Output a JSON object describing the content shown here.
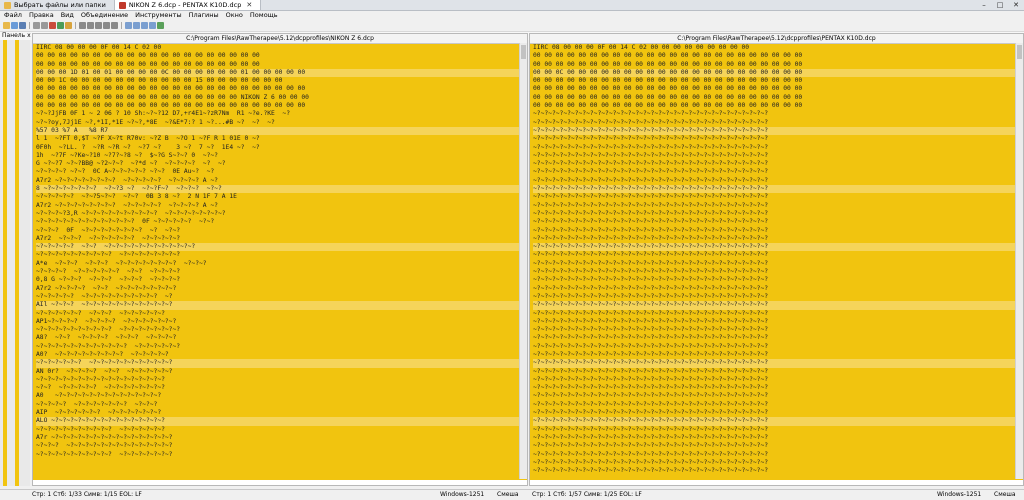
{
  "tabs": [
    {
      "label": "Выбрать файлы или папки",
      "icon": "folder-icon"
    },
    {
      "label": "NIKON Z 6.dcp - PENTAX K10D.dcp",
      "icon": "dcp-file-icon"
    }
  ],
  "menu": [
    "Файл",
    "Правка",
    "Вид",
    "Объединение",
    "Инструменты",
    "Плагины",
    "Окно",
    "Помощь"
  ],
  "panel_label": "Панель x",
  "panes": [
    {
      "title": "C:\\Program Files\\RawTherapee\\5.12\\dcpprofiles\\NIKON Z 6.dcp",
      "lines": [
        "IIRC 08 00 00 00 0F 00 14 C 02 00",
        "00 00 00 00 00 00 00 00 00 00 00 00 00 00 00 00 00 00 00 00",
        "00 00 00 00 00 00 00 00 00 00 00 00 00 00 00 00 00 00 00 00",
        "00 00 00 1D 01 00 01 00 00 00 00 0C 00 00 00 00 00 00 01 00 00 00 00 00",
        "00 00 1C 00 00 00 00 00 00 00 00 00 00 00 15 00 00 00 00 00 00 00",
        "00 00 00 00 00 00 00 00 00 00 00 00 00 00 00 00 00 00 00 00 00 00 00 00",
        "00 00 00 00 00 00 00 00 00 00 00 00 00 00 00 00 00 00 NIKON Z 6 00 00 00",
        "00 00 00 00 00 00 00 00 00 00 00 00 00 00 00 00 00 00 00 00 00 00 00 00",
        "~?~?JjFB 0F 1 ~ 2 06 ? 10 Sh:~?~?12 D7,+r4E1~?zR7Nm  R1 ~?e.?KE  ~?",
        "~?~?oy,7Jj1E ~?,*1I,*1E ~?~?,*8E  ~?&E*7:? 1 ~?...#B ~?  ~?  ~?",
        "%57 03 %7 A   %8 R7",
        "l 1  ~?FT 0,$T ~?F X~?t R70v: ~?Z B  ~?O 1 ~?F R 1 01E 0 ~?",
        "0F0h  ~?LL. ?  ~?R ~?R ~?  ~?7 ~?    3 ~?  7 ~?  1E4 ~?  ~?",
        "1h  ~?7F ~?Ke~?10 ~?7?~?8 ~?  $~?G S~?~? 0  ~?~?",
        "G ~?~?7 ~?~?BB@ ~?2~?~?  ~?*d ~?  ~?~?~?~?  ~?  ~?",
        "~?~?~?~? ~?~?  0C A~?~?~?~?~? ~?~?  0E Au~?  ~?",
        "A7r2 ~?~?~?~?~?~?~?~?  ~?~?~?~?~?  ~?~?~?~? A ~?",
        "8 ~?~?~?~?~?~?~?  ~?~?3 ~?  ~?~?F~?  ~?~?~?  ~?~?",
        "~?~?~?~?~?  ~?~?5~?~?  ~?~?  0B 3 8 ~?  2 N 1F 7 A 1E",
        "A7r2 ~?~?~?~?~?~?~?~?  ~?~?~?~?~?  ~?~?~?~? A ~?",
        "~?~?~?~?3,R ~?~?~?~?~?~?~?~?~?~?  ~?~?~?~?~?~?~?~?",
        "~?~?~?~?~?~?~?~?~?~?~?~?~?  0F ~?~?~?~?~?  ~?~?",
        "~?~?~?  0F  ~?~?~?~?~?~?~?~?  ~?  ~?~?",
        "A7r2  ~?~?~?  ~?~?~?~?~?~?  ~?~?~?~?~?",
        "~?~?~?~?~?  ~?~?  ~?~?~?~?~?~?~?~?~?~?~?~?",
        "~?~?~?~?~?~?~?~?~?~?  ~?~?~?~?~?~?~?~?",
        "A*e  ~?~?~?  ~?~?~?  ~?~?~?~?~?~?~?~?  ~?~?~?",
        "~?~?~?~?  ~?~?~?~?~?~?  ~?~?  ~?~?~?~?",
        "0,8 G ~?~?~?  ~?~?~?  ~?~?~?  ~?~?~?~?",
        "A7r2 ~?~?~?~?  ~?~?  ~?~?~?~?~?~?~?~?",
        "~?~?~?~?~?  ~?~?~?~?~?~?~?~?~?~?  ~?",
        "AIl ~?~?~?  ~?~?~?~?~?~?~?~?~?~?~?~?",
        "~?~?~?~?~?~?  ~?~?~?  ~?~?~?~?~?~?",
        "AP1~?~?~?~?  ~?~?~?~?  ~?~?~?~?~?~?~?",
        "~?~?~?~?~?~?~?~?~?~?  ~?~?~?~?~?~?~?~?",
        "A8?  ~?~?  ~?~?~?~?  ~?~?~?  ~?~?~?~?",
        "~?~?~?~?~?~?~?~?~?~?~?~?  ~?~?~?~?~?~?",
        "A0?  ~?~?~?~?~?~?~?~?~?  ~?~?~?~?~?",
        "~?~?~?~?~?~?  ~?~?~?~?~?~?~?~?~?~?~?",
        "AN 0r?  ~?~?~?~?  ~?~?  ~?~?~?~?~?~?",
        "~?~?~?~?~?~?~?~?~?~?~?~?~?~?~?~?~?",
        "~?~?  ~?~?~?~?~?  ~?~?~?~?~?~?~?~?",
        "A0   ~?~?~?~?~?~?~?~?~?~?~?~?~?~?",
        "~?~?~?~?  ~?~?~?~?~?~?~?  ~?~?~?",
        "AIP  ~?~?~?~?~?~?  ~?~?~?~?~?~?~?",
        "ALO ~?~?~?~?~?~?~?~?~?~?~?~?~?~?~?",
        "~?~?~?~?~?~?~?~?~?~?  ~?~?~?~?~?~?",
        "A7r ~?~?~?~?~?~?~?~?~?~?~?~?~?~?~?~?",
        "~?~?~?  ~?~?~?~?~?~?~?~?~?~?~?~?~?~?",
        "~?~?~?~?~?~?~?~?~?~?  ~?~?~?~?~?~?~?"
      ]
    },
    {
      "title": "C:\\Program Files\\RawTherapee\\5.12\\dcpprofiles\\PENTAX K10D.dcp",
      "lines": [
        "IIRC 08 00 00 00 0F 00 14 C 02 00 00 00 00 00 00 00 00 00",
        "00 00 00 00 00 00 00 00 00 00 00 00 00 00 00 00 00 00 00 00 00 00 00 00",
        "00 00 00 00 00 00 00 00 00 00 00 00 00 00 00 00 00 00 00 00 00 00 00 00",
        "00 00 0C 00 00 00 00 00 00 00 00 00 00 00 00 00 00 00 00 00 00 00 00 00",
        "00 00 00 00 00 00 00 00 00 00 00 00 00 00 00 00 00 00 00 00 00 00 00 00",
        "00 00 00 00 00 00 00 00 00 00 00 00 00 00 00 00 00 00 00 00 00 00 00 00",
        "00 00 00 00 00 00 00 00 00 00 00 00 00 00 00 00 00 00 00 00 00 00 00 00",
        "00 00 00 00 00 00 00 00 00 00 00 00 00 00 00 00 00 00 00 00 00 00 00 00",
        "~?~?~?~?~?~?~?~?~?~?~?~?~?~?~?~?~?~?~?~?~?~?~?~?~?~?~?~?~?~?~?",
        "~?~?~?~?~?~?~?~?~?~?~?~?~?~?~?~?~?~?~?~?~?~?~?~?~?~?~?~?~?~?~?",
        "~?~?~?~?~?~?~?~?~?~?~?~?~?~?~?~?~?~?~?~?~?~?~?~?~?~?~?~?~?~?~?",
        "~?~?~?~?~?~?~?~?~?~?~?~?~?~?~?~?~?~?~?~?~?~?~?~?~?~?~?~?~?~?~?",
        "~?~?~?~?~?~?~?~?~?~?~?~?~?~?~?~?~?~?~?~?~?~?~?~?~?~?~?~?~?~?~?",
        "~?~?~?~?~?~?~?~?~?~?~?~?~?~?~?~?~?~?~?~?~?~?~?~?~?~?~?~?~?~?~?",
        "~?~?~?~?~?~?~?~?~?~?~?~?~?~?~?~?~?~?~?~?~?~?~?~?~?~?~?~?~?~?~?",
        "~?~?~?~?~?~?~?~?~?~?~?~?~?~?~?~?~?~?~?~?~?~?~?~?~?~?~?~?~?~?~?",
        "~?~?~?~?~?~?~?~?~?~?~?~?~?~?~?~?~?~?~?~?~?~?~?~?~?~?~?~?~?~?~?",
        "~?~?~?~?~?~?~?~?~?~?~?~?~?~?~?~?~?~?~?~?~?~?~?~?~?~?~?~?~?~?~?",
        "~?~?~?~?~?~?~?~?~?~?~?~?~?~?~?~?~?~?~?~?~?~?~?~?~?~?~?~?~?~?~?",
        "~?~?~?~?~?~?~?~?~?~?~?~?~?~?~?~?~?~?~?~?~?~?~?~?~?~?~?~?~?~?~?",
        "~?~?~?~?~?~?~?~?~?~?~?~?~?~?~?~?~?~?~?~?~?~?~?~?~?~?~?~?~?~?~?",
        "~?~?~?~?~?~?~?~?~?~?~?~?~?~?~?~?~?~?~?~?~?~?~?~?~?~?~?~?~?~?~?",
        "~?~?~?~?~?~?~?~?~?~?~?~?~?~?~?~?~?~?~?~?~?~?~?~?~?~?~?~?~?~?~?",
        "~?~?~?~?~?~?~?~?~?~?~?~?~?~?~?~?~?~?~?~?~?~?~?~?~?~?~?~?~?~?~?",
        "~?~?~?~?~?~?~?~?~?~?~?~?~?~?~?~?~?~?~?~?~?~?~?~?~?~?~?~?~?~?~?",
        "~?~?~?~?~?~?~?~?~?~?~?~?~?~?~?~?~?~?~?~?~?~?~?~?~?~?~?~?~?~?~?",
        "~?~?~?~?~?~?~?~?~?~?~?~?~?~?~?~?~?~?~?~?~?~?~?~?~?~?~?~?~?~?~?",
        "~?~?~?~?~?~?~?~?~?~?~?~?~?~?~?~?~?~?~?~?~?~?~?~?~?~?~?~?~?~?~?",
        "~?~?~?~?~?~?~?~?~?~?~?~?~?~?~?~?~?~?~?~?~?~?~?~?~?~?~?~?~?~?~?",
        "~?~?~?~?~?~?~?~?~?~?~?~?~?~?~?~?~?~?~?~?~?~?~?~?~?~?~?~?~?~?~?",
        "~?~?~?~?~?~?~?~?~?~?~?~?~?~?~?~?~?~?~?~?~?~?~?~?~?~?~?~?~?~?~?",
        "~?~?~?~?~?~?~?~?~?~?~?~?~?~?~?~?~?~?~?~?~?~?~?~?~?~?~?~?~?~?~?",
        "~?~?~?~?~?~?~?~?~?~?~?~?~?~?~?~?~?~?~?~?~?~?~?~?~?~?~?~?~?~?~?",
        "~?~?~?~?~?~?~?~?~?~?~?~?~?~?~?~?~?~?~?~?~?~?~?~?~?~?~?~?~?~?~?",
        "~?~?~?~?~?~?~?~?~?~?~?~?~?~?~?~?~?~?~?~?~?~?~?~?~?~?~?~?~?~?~?",
        "~?~?~?~?~?~?~?~?~?~?~?~?~?~?~?~?~?~?~?~?~?~?~?~?~?~?~?~?~?~?~?",
        "~?~?~?~?~?~?~?~?~?~?~?~?~?~?~?~?~?~?~?~?~?~?~?~?~?~?~?~?~?~?~?",
        "~?~?~?~?~?~?~?~?~?~?~?~?~?~?~?~?~?~?~?~?~?~?~?~?~?~?~?~?~?~?~?",
        "~?~?~?~?~?~?~?~?~?~?~?~?~?~?~?~?~?~?~?~?~?~?~?~?~?~?~?~?~?~?~?",
        "~?~?~?~?~?~?~?~?~?~?~?~?~?~?~?~?~?~?~?~?~?~?~?~?~?~?~?~?~?~?~?",
        "~?~?~?~?~?~?~?~?~?~?~?~?~?~?~?~?~?~?~?~?~?~?~?~?~?~?~?~?~?~?~?",
        "~?~?~?~?~?~?~?~?~?~?~?~?~?~?~?~?~?~?~?~?~?~?~?~?~?~?~?~?~?~?~?",
        "~?~?~?~?~?~?~?~?~?~?~?~?~?~?~?~?~?~?~?~?~?~?~?~?~?~?~?~?~?~?~?",
        "~?~?~?~?~?~?~?~?~?~?~?~?~?~?~?~?~?~?~?~?~?~?~?~?~?~?~?~?~?~?~?",
        "~?~?~?~?~?~?~?~?~?~?~?~?~?~?~?~?~?~?~?~?~?~?~?~?~?~?~?~?~?~?~?",
        "~?~?~?~?~?~?~?~?~?~?~?~?~?~?~?~?~?~?~?~?~?~?~?~?~?~?~?~?~?~?~?",
        "~?~?~?~?~?~?~?~?~?~?~?~?~?~?~?~?~?~?~?~?~?~?~?~?~?~?~?~?~?~?~?",
        "~?~?~?~?~?~?~?~?~?~?~?~?~?~?~?~?~?~?~?~?~?~?~?~?~?~?~?~?~?~?~?",
        "~?~?~?~?~?~?~?~?~?~?~?~?~?~?~?~?~?~?~?~?~?~?~?~?~?~?~?~?~?~?~?",
        "~?~?~?~?~?~?~?~?~?~?~?~?~?~?~?~?~?~?~?~?~?~?~?~?~?~?~?~?~?~?~?",
        "~?~?~?~?~?~?~?~?~?~?~?~?~?~?~?~?~?~?~?~?~?~?~?~?~?~?~?~?~?~?~?",
        "~?~?~?~?~?~?~?~?~?~?~?~?~?~?~?~?~?~?~?~?~?~?~?~?~?~?~?~?~?~?~?"
      ]
    }
  ],
  "status": {
    "left_pos": "Стр: 1  Стб: 1/33  Симв: 1/15  EOL: LF",
    "left_enc": "Windows-1251",
    "left_mode": "Смеша",
    "right_pos": "Стр: 1  Стб: 1/57  Симв: 1/25  EOL: LF",
    "right_enc": "Windows-1251",
    "right_mode": "Смеша"
  },
  "colors": {
    "pane_bg": "#f1c40f",
    "diff_highlight": "#e67e5a"
  }
}
